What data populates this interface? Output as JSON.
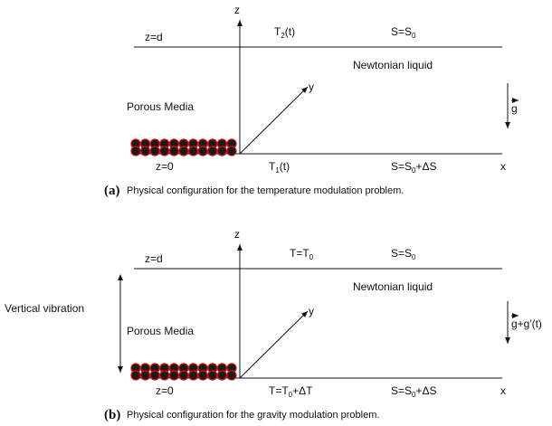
{
  "panels": [
    {
      "letter": "(a)",
      "caption": "Physical configuration for the temperature modulation problem.",
      "z_axis": "z",
      "x_axis": "x",
      "y_axis": "y",
      "top_label": "z=d",
      "bottom_label": "z=0",
      "liquid": "Newtonian liquid",
      "porous": "Porous Media",
      "top_temp": [
        {
          "t": "T"
        },
        {
          "t": "2",
          "sub": true
        },
        {
          "t": "(t)"
        }
      ],
      "top_salt": [
        {
          "t": "S=S"
        },
        {
          "t": "0",
          "sub": true
        }
      ],
      "bottom_temp": [
        {
          "t": "T"
        },
        {
          "t": "1",
          "sub": true
        },
        {
          "t": "(t)"
        }
      ],
      "bottom_salt": [
        {
          "t": "S=S"
        },
        {
          "t": "0",
          "sub": true
        },
        {
          "t": "+ΔS"
        }
      ],
      "gravity": "g"
    },
    {
      "letter": "(b)",
      "caption": "Physical configuration for the gravity modulation problem.",
      "z_axis": "z",
      "x_axis": "x",
      "y_axis": "y",
      "top_label": "z=d",
      "bottom_label": "z=0",
      "liquid": "Newtonian liquid",
      "porous": "Porous Media",
      "vibration": "Vertical vibration",
      "top_temp": [
        {
          "t": "T=T"
        },
        {
          "t": "0",
          "sub": true
        }
      ],
      "top_salt": [
        {
          "t": "S=S"
        },
        {
          "t": "0",
          "sub": true
        }
      ],
      "bottom_temp": [
        {
          "t": "T=T"
        },
        {
          "t": "0",
          "sub": true
        },
        {
          "t": "+ΔT"
        }
      ],
      "bottom_salt": [
        {
          "t": "S=S"
        },
        {
          "t": "0",
          "sub": true
        },
        {
          "t": "+ΔS"
        }
      ],
      "gravity": "g+g′(t)"
    }
  ]
}
